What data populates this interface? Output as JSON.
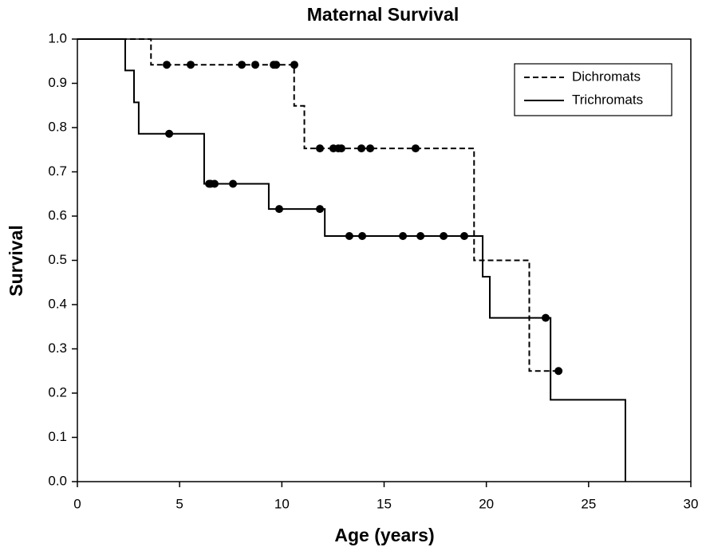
{
  "chart_data": {
    "type": "survival",
    "title": "Maternal Survival",
    "x_label": "Age (years)",
    "y_label": "Survival",
    "xlim": [
      0,
      30
    ],
    "xticks": [
      0,
      5,
      10,
      15,
      20,
      25,
      30
    ],
    "ylim": [
      0,
      1
    ],
    "yticks": [
      {
        "value": 0,
        "label": "0.0"
      },
      {
        "value": 0.1,
        "label": "0.1"
      },
      {
        "value": 0.2,
        "label": "0.2"
      },
      {
        "value": 0.3,
        "label": "0.3"
      },
      {
        "value": 0.4,
        "label": "0.4"
      },
      {
        "value": 0.5,
        "label": "0.5"
      },
      {
        "value": 0.6,
        "label": "0.6"
      },
      {
        "value": 0.7,
        "label": "0.7"
      },
      {
        "value": 0.8,
        "label": "0.8"
      },
      {
        "value": 0.9,
        "label": "0.9"
      },
      {
        "value": 1,
        "label": "1.0"
      }
    ],
    "legend": "top-right",
    "series": [
      {
        "name": "Dichromats",
        "color": "#000000",
        "dash": true,
        "x": [
          0,
          3.6,
          10.6,
          11.1,
          19.4,
          22.1,
          23.5
        ],
        "values": [
          1.0,
          0.942,
          0.849,
          0.753,
          0.5,
          0.25,
          0.25
        ],
        "censor_x": [
          4.37,
          5.54,
          8.04,
          8.7,
          9.6,
          9.72,
          10.61,
          11.86,
          12.52,
          12.76,
          12.91,
          13.89,
          14.32,
          16.54,
          23.53
        ],
        "censor_values": [
          0.942,
          0.942,
          0.942,
          0.942,
          0.942,
          0.942,
          0.942,
          0.753,
          0.753,
          0.753,
          0.753,
          0.753,
          0.753,
          0.753,
          0.25
        ]
      },
      {
        "name": "Trichromats",
        "color": "#000000",
        "dash": false,
        "x": [
          0,
          2.34,
          2.77,
          3.0,
          6.2,
          9.36,
          12.1,
          19.82,
          20.17,
          23.14,
          26.8
        ],
        "values": [
          1.0,
          0.929,
          0.857,
          0.786,
          0.673,
          0.616,
          0.555,
          0.463,
          0.37,
          0.185,
          0
        ],
        "censor_x": [
          4.49,
          6.44,
          6.52,
          6.71,
          7.61,
          9.87,
          11.86,
          13.3,
          13.93,
          15.92,
          16.78,
          17.91,
          18.92,
          22.9
        ],
        "censor_values": [
          0.786,
          0.673,
          0.673,
          0.673,
          0.673,
          0.616,
          0.616,
          0.555,
          0.555,
          0.555,
          0.555,
          0.555,
          0.555,
          0.37
        ]
      }
    ]
  }
}
